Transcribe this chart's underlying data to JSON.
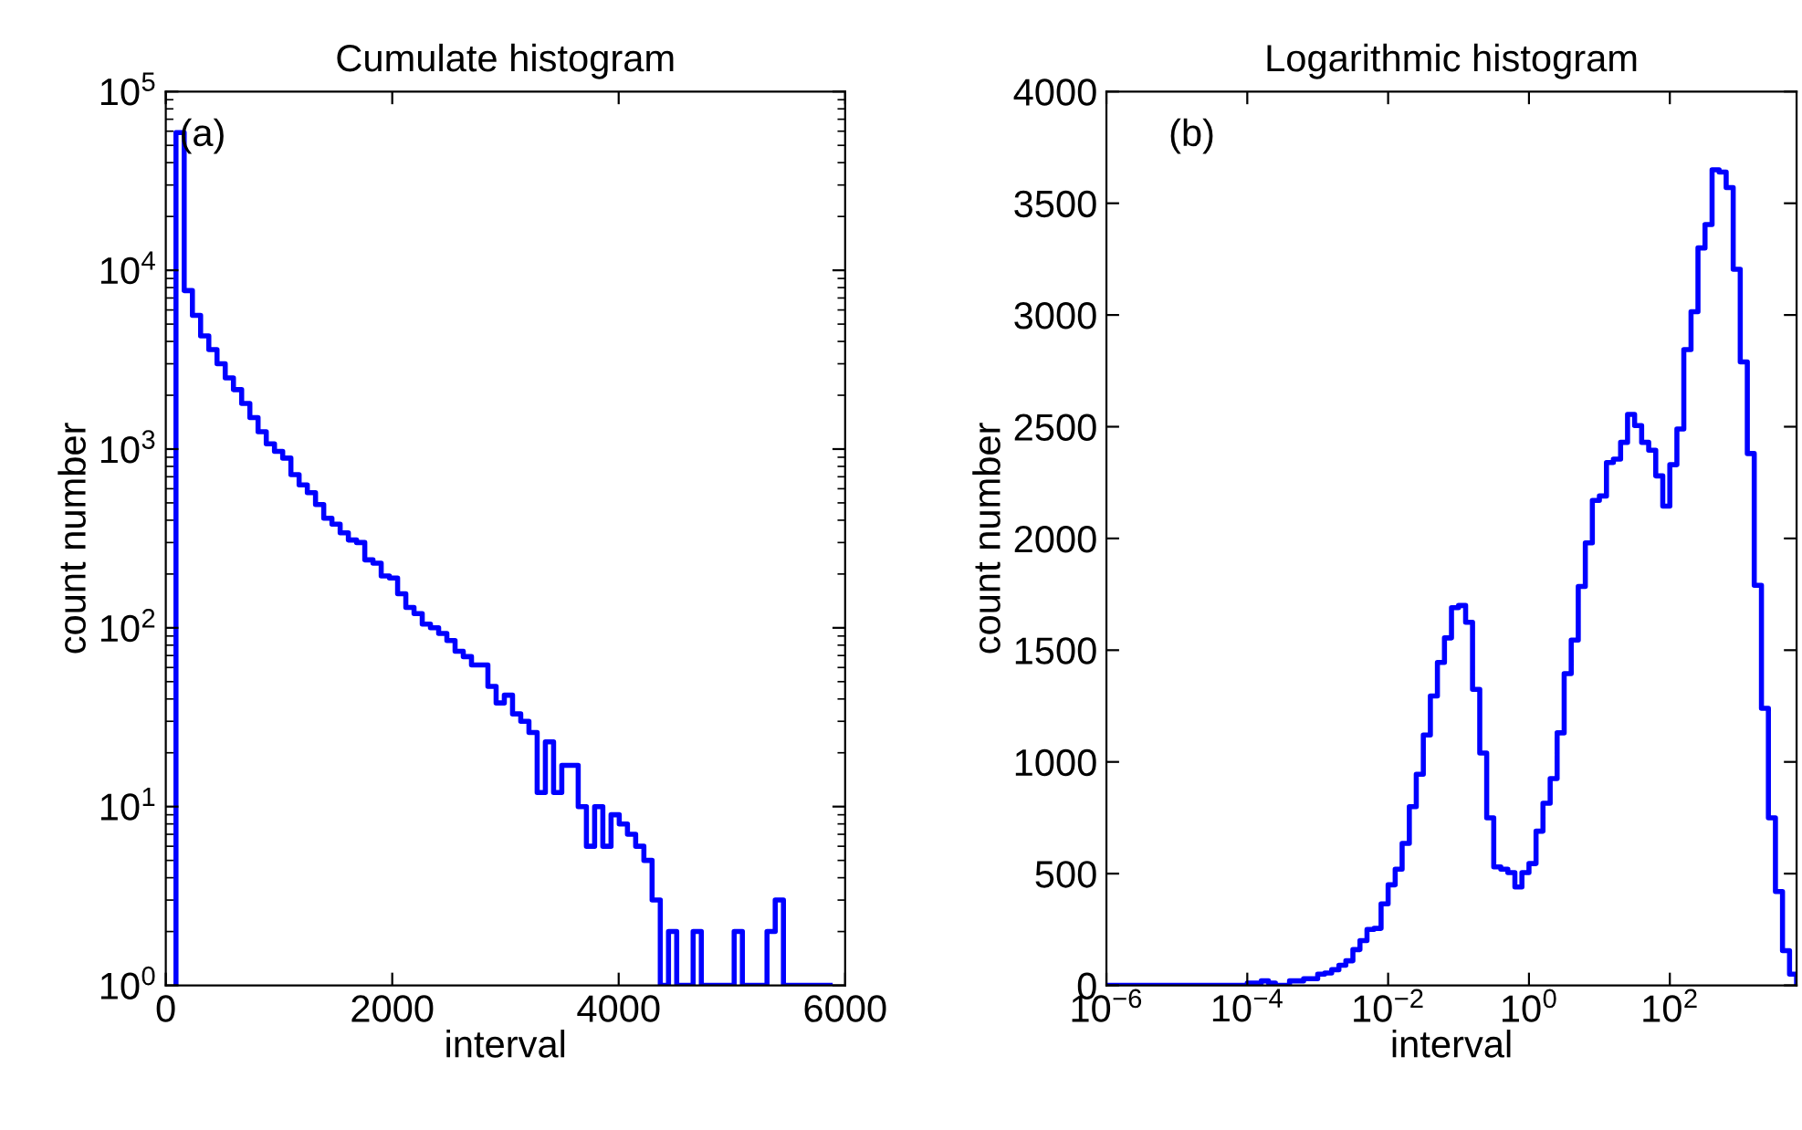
{
  "chart_data": [
    {
      "type": "histogram",
      "title": "Cumulate histogram",
      "xlabel": "interval",
      "ylabel": "count number",
      "color": "#0000ff",
      "log": "y",
      "annotations": [
        "(a)"
      ],
      "xlim": [
        0,
        6000
      ],
      "xticks": [
        0,
        2000,
        4000,
        6000
      ],
      "ylim": [
        1,
        100000
      ],
      "yticks": [
        {
          "value": 1,
          "label": "10$^{0}$"
        },
        {
          "value": 10,
          "label": "10$^{1}$"
        },
        {
          "value": 100,
          "label": "10$^{2}$"
        },
        {
          "value": 1000,
          "label": "10$^{3}$"
        },
        {
          "value": 10000,
          "label": "10$^{4}$"
        },
        {
          "value": 100000,
          "label": "10$^{5}$"
        }
      ],
      "bins": [
        90,
        162.5,
        235,
        307.5,
        380,
        452.5,
        525,
        597.5,
        670,
        742.5,
        815,
        887.5,
        960,
        1032.5,
        1105,
        1177.5,
        1250,
        1322.5,
        1395,
        1467.5,
        1540,
        1612.5,
        1685,
        1757.5,
        1830,
        1902.5,
        1975,
        2047.5,
        2120,
        2192.5,
        2265,
        2337.5,
        2410,
        2482.5,
        2555,
        2627.5,
        2700,
        2772.5,
        2845,
        2917.5,
        2990,
        3062.5,
        3135,
        3207.5,
        3280,
        3352.5,
        3425,
        3497.5,
        3570,
        3642.5,
        3715,
        3787.5,
        3860,
        3932.5,
        4005,
        4077.5,
        4150,
        4222.5,
        4295,
        4367.5,
        4440,
        4512.5,
        4585,
        4657.5,
        4730,
        4802.5,
        4875,
        4947.5,
        5020,
        5092.5,
        5165,
        5237.5,
        5310,
        5382.5,
        5455,
        5527.5,
        5600,
        5672.5,
        5745,
        5817.5,
        5890
      ],
      "values": [
        59000,
        7700,
        5600,
        4300,
        3600,
        3000,
        2500,
        2150,
        1800,
        1500,
        1250,
        1070,
        970,
        890,
        720,
        630,
        570,
        490,
        410,
        380,
        340,
        310,
        300,
        240,
        230,
        195,
        190,
        155,
        130,
        120,
        105,
        100,
        93,
        85,
        74,
        69,
        62,
        62,
        47,
        38,
        42,
        33,
        30,
        26,
        12,
        23,
        12,
        17,
        17,
        10,
        6,
        10,
        6,
        9,
        8,
        7,
        6,
        5,
        3,
        1,
        2,
        1,
        1,
        2,
        1,
        1,
        1,
        1,
        2,
        1,
        1,
        1,
        2,
        3,
        1,
        1,
        1,
        1,
        1,
        1
      ]
    },
    {
      "type": "histogram",
      "title": "Logarithmic histogram",
      "xlabel": "interval",
      "ylabel": "count number",
      "color": "#0000ff",
      "log": "x",
      "annotations": [
        "(b)"
      ],
      "xlim": [
        1e-06,
        6310
      ],
      "xticks": [
        {
          "value": 1e-06,
          "label": "10$^{−6}$"
        },
        {
          "value": 0.0001,
          "label": "10$^{−4}$"
        },
        {
          "value": 0.01,
          "label": "10$^{−2}$"
        },
        {
          "value": 1,
          "label": "10$^{0}$"
        },
        {
          "value": 100,
          "label": "10$^{2}$"
        }
      ],
      "ylim": [
        0,
        4000
      ],
      "yticks": [
        0,
        500,
        1000,
        1500,
        2000,
        2500,
        3000,
        3500,
        4000
      ],
      "bins": [
        1e-06,
        1.26e-06,
        1.58e-06,
        2e-06,
        2.51e-06,
        3.16e-06,
        3.98e-06,
        5.01e-06,
        6.31e-06,
        7.94e-06,
        1e-05,
        1.26e-05,
        1.58e-05,
        2e-05,
        2.51e-05,
        3.16e-05,
        3.98e-05,
        5.01e-05,
        6.31e-05,
        7.94e-05,
        0.0001,
        0.000126,
        0.000158,
        0.0002,
        0.000251,
        0.000316,
        0.000398,
        0.000501,
        0.000631,
        0.000794,
        0.001,
        0.00126,
        0.00158,
        0.002,
        0.00251,
        0.00316,
        0.00398,
        0.00501,
        0.00631,
        0.00794,
        0.01,
        0.0126,
        0.0158,
        0.02,
        0.0251,
        0.0316,
        0.0398,
        0.0501,
        0.0631,
        0.0794,
        0.1,
        0.126,
        0.158,
        0.2,
        0.251,
        0.316,
        0.398,
        0.501,
        0.631,
        0.794,
        1,
        1.26,
        1.58,
        2,
        2.51,
        3.16,
        3.98,
        5.01,
        6.31,
        7.94,
        10,
        12.6,
        15.8,
        20,
        25.1,
        31.6,
        39.8,
        50.1,
        63.1,
        79.4,
        100,
        126,
        158,
        200,
        251,
        316,
        398,
        501,
        631,
        794,
        1000,
        1260,
        1580,
        2000,
        2510,
        3160,
        3980,
        5010,
        6310
      ],
      "values": [
        0,
        0,
        0,
        0,
        0,
        0,
        0,
        0,
        0,
        0,
        0,
        0,
        0,
        0,
        0,
        0,
        0,
        0,
        0,
        0,
        10,
        10,
        20,
        10,
        0,
        0,
        20,
        20,
        30,
        30,
        50,
        55,
        70,
        90,
        110,
        160,
        200,
        250,
        255,
        365,
        450,
        520,
        635,
        800,
        945,
        1120,
        1295,
        1445,
        1555,
        1690,
        1700,
        1625,
        1325,
        1040,
        750,
        530,
        520,
        505,
        440,
        505,
        545,
        690,
        815,
        925,
        1130,
        1395,
        1545,
        1785,
        1980,
        2170,
        2190,
        2340,
        2355,
        2430,
        2555,
        2505,
        2430,
        2395,
        2280,
        2145,
        2330,
        2490,
        2845,
        3015,
        3300,
        3405,
        3650,
        3640,
        3570,
        3205,
        2790,
        2380,
        1790,
        1240,
        750,
        420,
        155,
        50
      ]
    }
  ]
}
